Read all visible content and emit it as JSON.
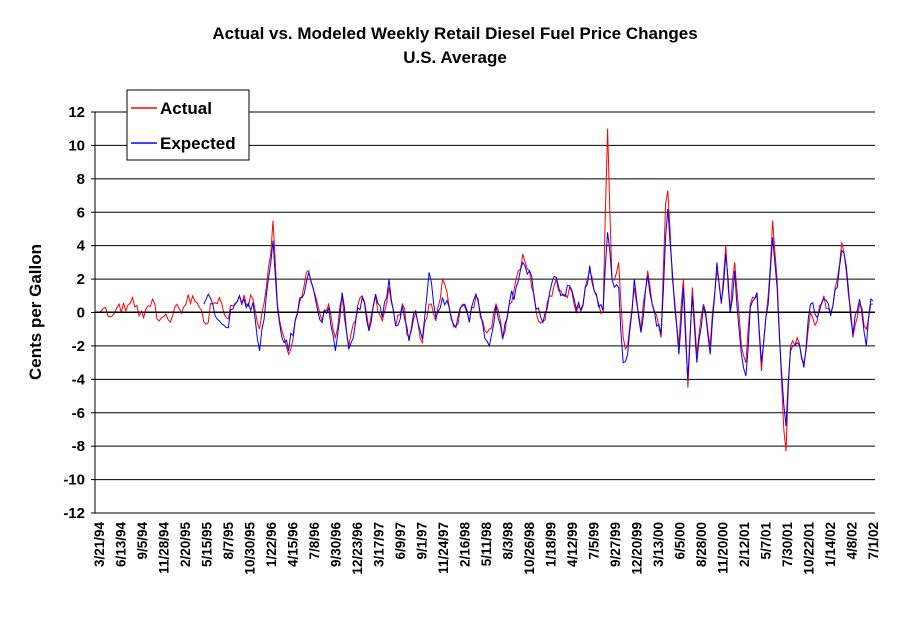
{
  "chart_data": {
    "type": "line",
    "title": "Actual vs. Modeled Weekly Retail Diesel Fuel Price Changes",
    "subtitle": "U.S. Average",
    "ylabel": "Cents per Gallon",
    "xlabel": "",
    "ylim": [
      -12,
      12
    ],
    "yticks": [
      "12",
      "10",
      "8",
      "6",
      "4",
      "2",
      "0",
      "-2",
      "-4",
      "-6",
      "-8",
      "-10",
      "-12"
    ],
    "ytick_values": [
      12,
      10,
      8,
      6,
      4,
      2,
      0,
      -2,
      -4,
      -6,
      -8,
      -10,
      -12
    ],
    "grid": "horizontal",
    "legend_position": "top-left",
    "xtick_labels": [
      "3/21/94",
      "6/13/94",
      "9/5/94",
      "11/28/94",
      "2/20/95",
      "5/15/95",
      "8/7/95",
      "10/30/95",
      "1/22/96",
      "4/15/96",
      "7/8/96",
      "9/30/96",
      "12/23/96",
      "3/17/97",
      "6/9/97",
      "9/1/97",
      "11/24/97",
      "2/16/98",
      "5/11/98",
      "8/3/98",
      "10/26/98",
      "1/18/99",
      "4/12/99",
      "7/5/99",
      "9/27/99",
      "12/20/99",
      "3/13/00",
      "6/5/00",
      "8/28/00",
      "11/20/00",
      "2/12/01",
      "5/7/01",
      "7/30/01",
      "10/22/01",
      "1/14/02",
      "4/8/02",
      "7/1/02"
    ],
    "series": [
      {
        "name": "Actual",
        "color": "#ff0000",
        "key_points": [
          [
            0,
            0.0
          ],
          [
            3,
            0.3
          ],
          [
            6,
            -0.2
          ],
          [
            9,
            0.5
          ],
          [
            12,
            0.1
          ],
          [
            15,
            0.9
          ],
          [
            18,
            -0.2
          ],
          [
            21,
            0.2
          ],
          [
            24,
            0.8
          ],
          [
            27,
            -0.5
          ],
          [
            30,
            -0.1
          ],
          [
            33,
            -0.2
          ],
          [
            36,
            0.2
          ],
          [
            39,
            0.5
          ],
          [
            42,
            1.0
          ],
          [
            45,
            0.3
          ],
          [
            48,
            -0.7
          ],
          [
            51,
            0.5
          ],
          [
            54,
            0.9
          ],
          [
            57,
            -0.3
          ],
          [
            60,
            0.4
          ],
          [
            63,
            1.0
          ],
          [
            66,
            0.5
          ],
          [
            69,
            0.8
          ],
          [
            72,
            -1.0
          ],
          [
            75,
            1.5
          ],
          [
            77,
            3.5
          ],
          [
            78,
            5.5
          ],
          [
            80,
            0.5
          ],
          [
            83,
            -1.5
          ],
          [
            85,
            -2.5
          ],
          [
            88,
            -0.5
          ],
          [
            91,
            1.0
          ],
          [
            94,
            2.5
          ],
          [
            97,
            1.0
          ],
          [
            100,
            -0.5
          ],
          [
            103,
            0.5
          ],
          [
            106,
            -1.5
          ],
          [
            109,
            1.0
          ],
          [
            112,
            -2.0
          ],
          [
            115,
            -0.5
          ],
          [
            118,
            1.0
          ],
          [
            121,
            -1.0
          ],
          [
            124,
            1.0
          ],
          [
            127,
            -0.5
          ],
          [
            130,
            1.5
          ],
          [
            133,
            -0.8
          ],
          [
            136,
            0.5
          ],
          [
            139,
            -1.5
          ],
          [
            142,
            0.0
          ],
          [
            145,
            -1.8
          ],
          [
            148,
            0.5
          ],
          [
            151,
            -0.5
          ],
          [
            154,
            2.0
          ],
          [
            157,
            0.3
          ],
          [
            160,
            -0.8
          ],
          [
            163,
            0.5
          ],
          [
            166,
            -0.5
          ],
          [
            169,
            1.0
          ],
          [
            172,
            -0.5
          ],
          [
            175,
            -1.0
          ],
          [
            178,
            0.5
          ],
          [
            181,
            -1.5
          ],
          [
            184,
            0.5
          ],
          [
            187,
            2.0
          ],
          [
            190,
            3.5
          ],
          [
            193,
            2.5
          ],
          [
            196,
            0.0
          ],
          [
            199,
            -0.5
          ],
          [
            202,
            1.0
          ],
          [
            205,
            2.0
          ],
          [
            208,
            1.0
          ],
          [
            211,
            1.5
          ],
          [
            214,
            0.0
          ],
          [
            217,
            0.5
          ],
          [
            220,
            2.5
          ],
          [
            223,
            1.0
          ],
          [
            226,
            0.0
          ],
          [
            228,
            11.0
          ],
          [
            230,
            2.0
          ],
          [
            233,
            3.0
          ],
          [
            235,
            -1.5
          ],
          [
            237,
            -2.0
          ],
          [
            240,
            1.5
          ],
          [
            243,
            -1.0
          ],
          [
            246,
            2.5
          ],
          [
            249,
            0.0
          ],
          [
            252,
            -1.5
          ],
          [
            254,
            6.5
          ],
          [
            255,
            7.3
          ],
          [
            257,
            2.0
          ],
          [
            260,
            -2.0
          ],
          [
            262,
            2.0
          ],
          [
            264,
            -4.5
          ],
          [
            266,
            1.5
          ],
          [
            268,
            -2.5
          ],
          [
            271,
            0.5
          ],
          [
            274,
            -2.0
          ],
          [
            277,
            2.5
          ],
          [
            279,
            0.5
          ],
          [
            281,
            4.0
          ],
          [
            283,
            0.0
          ],
          [
            285,
            3.0
          ],
          [
            288,
            -2.0
          ],
          [
            290,
            -3.0
          ],
          [
            292,
            0.5
          ],
          [
            295,
            1.0
          ],
          [
            297,
            -3.5
          ],
          [
            300,
            1.0
          ],
          [
            302,
            5.5
          ],
          [
            304,
            2.0
          ],
          [
            306,
            -4.0
          ],
          [
            307,
            -7.0
          ],
          [
            308,
            -8.3
          ],
          [
            310,
            -2.0
          ],
          [
            313,
            -1.5
          ],
          [
            316,
            -3.0
          ],
          [
            319,
            0.0
          ],
          [
            322,
            -0.5
          ],
          [
            325,
            1.0
          ],
          [
            328,
            0.0
          ],
          [
            331,
            2.0
          ],
          [
            333,
            4.2
          ],
          [
            335,
            2.5
          ],
          [
            338,
            -1.5
          ],
          [
            341,
            0.5
          ],
          [
            344,
            -1.0
          ],
          [
            346,
            0.5
          ],
          [
            347,
            0.5
          ]
        ]
      },
      {
        "name": "Expected",
        "color": "#0000ff",
        "key_points": [
          [
            47,
            0.5
          ],
          [
            49,
            1.1
          ],
          [
            51,
            0.5
          ],
          [
            54,
            -0.5
          ],
          [
            57,
            -0.9
          ],
          [
            60,
            0.2
          ],
          [
            63,
            1.0
          ],
          [
            66,
            0.3
          ],
          [
            69,
            0.6
          ],
          [
            72,
            -2.3
          ],
          [
            75,
            1.0
          ],
          [
            77,
            3.0
          ],
          [
            78,
            4.3
          ],
          [
            80,
            0.3
          ],
          [
            83,
            -1.8
          ],
          [
            85,
            -2.3
          ],
          [
            88,
            -0.4
          ],
          [
            91,
            0.9
          ],
          [
            94,
            2.4
          ],
          [
            97,
            0.8
          ],
          [
            100,
            -0.6
          ],
          [
            103,
            0.3
          ],
          [
            106,
            -2.3
          ],
          [
            109,
            1.2
          ],
          [
            112,
            -2.2
          ],
          [
            115,
            -0.6
          ],
          [
            118,
            0.9
          ],
          [
            121,
            -1.1
          ],
          [
            124,
            1.1
          ],
          [
            127,
            -0.3
          ],
          [
            130,
            2.0
          ],
          [
            133,
            -0.8
          ],
          [
            136,
            0.4
          ],
          [
            139,
            -1.7
          ],
          [
            142,
            0.1
          ],
          [
            145,
            -1.6
          ],
          [
            148,
            2.4
          ],
          [
            151,
            -0.3
          ],
          [
            154,
            0.9
          ],
          [
            157,
            0.3
          ],
          [
            160,
            -0.9
          ],
          [
            163,
            0.4
          ],
          [
            166,
            -0.6
          ],
          [
            169,
            1.1
          ],
          [
            172,
            -0.7
          ],
          [
            175,
            -2.0
          ],
          [
            178,
            0.4
          ],
          [
            181,
            -1.6
          ],
          [
            184,
            0.6
          ],
          [
            187,
            1.5
          ],
          [
            190,
            3.0
          ],
          [
            193,
            2.5
          ],
          [
            196,
            0.2
          ],
          [
            199,
            -0.6
          ],
          [
            202,
            1.2
          ],
          [
            205,
            2.1
          ],
          [
            208,
            1.1
          ],
          [
            211,
            1.6
          ],
          [
            214,
            0.2
          ],
          [
            217,
            0.4
          ],
          [
            220,
            2.8
          ],
          [
            223,
            1.1
          ],
          [
            226,
            0.1
          ],
          [
            228,
            4.8
          ],
          [
            230,
            2.0
          ],
          [
            233,
            1.5
          ],
          [
            235,
            -3.0
          ],
          [
            237,
            -2.5
          ],
          [
            240,
            2.0
          ],
          [
            243,
            -1.2
          ],
          [
            246,
            2.2
          ],
          [
            249,
            0.1
          ],
          [
            252,
            -1.3
          ],
          [
            254,
            4.5
          ],
          [
            255,
            6.2
          ],
          [
            257,
            2.5
          ],
          [
            260,
            -2.5
          ],
          [
            262,
            1.5
          ],
          [
            264,
            -4.0
          ],
          [
            266,
            1.0
          ],
          [
            268,
            -3.0
          ],
          [
            271,
            0.4
          ],
          [
            274,
            -2.5
          ],
          [
            277,
            3.0
          ],
          [
            279,
            0.6
          ],
          [
            281,
            3.5
          ],
          [
            283,
            0.0
          ],
          [
            285,
            2.5
          ],
          [
            288,
            -2.5
          ],
          [
            290,
            -3.8
          ],
          [
            292,
            0.3
          ],
          [
            295,
            1.2
          ],
          [
            297,
            -3.0
          ],
          [
            300,
            0.5
          ],
          [
            302,
            4.5
          ],
          [
            304,
            1.5
          ],
          [
            306,
            -3.5
          ],
          [
            307,
            -5.5
          ],
          [
            308,
            -6.8
          ],
          [
            310,
            -2.3
          ],
          [
            313,
            -1.8
          ],
          [
            316,
            -3.3
          ],
          [
            319,
            0.5
          ],
          [
            322,
            -0.3
          ],
          [
            325,
            0.8
          ],
          [
            328,
            -0.2
          ],
          [
            331,
            1.5
          ],
          [
            333,
            3.7
          ],
          [
            335,
            2.8
          ],
          [
            338,
            -1.3
          ],
          [
            341,
            0.8
          ],
          [
            344,
            -2.0
          ],
          [
            346,
            0.8
          ],
          [
            347,
            0.7
          ]
        ]
      }
    ],
    "x_count": 348
  }
}
